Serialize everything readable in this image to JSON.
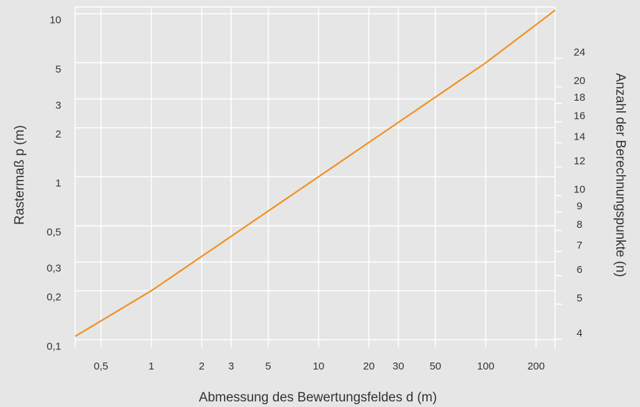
{
  "chart_data": {
    "type": "line",
    "xlabel": "Abmessung des Bewertungsfeldes d (m)",
    "ylabel": "Rastermaß p (m)",
    "y2label": "Anzahl der Berechnungspunkte (n)",
    "x_scale": "log",
    "y_scale": "log",
    "xlim": [
      0.35,
      260
    ],
    "ylim": [
      0.09,
      11
    ],
    "y2lim": [
      3.65,
      32
    ],
    "grid": true,
    "x_ticks": [
      {
        "value": 0.5,
        "label": "0,5"
      },
      {
        "value": 1,
        "label": "1"
      },
      {
        "value": 2,
        "label": "2"
      },
      {
        "value": 3,
        "label": "3"
      },
      {
        "value": 5,
        "label": "5"
      },
      {
        "value": 10,
        "label": "10"
      },
      {
        "value": 20,
        "label": "20"
      },
      {
        "value": 30,
        "label": "30"
      },
      {
        "value": 50,
        "label": "50"
      },
      {
        "value": 100,
        "label": "100"
      },
      {
        "value": 200,
        "label": "200"
      }
    ],
    "y_ticks": [
      {
        "value": 0.1,
        "label": "0,1"
      },
      {
        "value": 0.2,
        "label": "0,2"
      },
      {
        "value": 0.3,
        "label": "0,3"
      },
      {
        "value": 0.5,
        "label": "0,5"
      },
      {
        "value": 1,
        "label": "1"
      },
      {
        "value": 2,
        "label": "2"
      },
      {
        "value": 3,
        "label": "3"
      },
      {
        "value": 5,
        "label": "5"
      },
      {
        "value": 10,
        "label": "10"
      }
    ],
    "y2_ticks": [
      {
        "value": 4,
        "label": "4"
      },
      {
        "value": 5,
        "label": "5"
      },
      {
        "value": 6,
        "label": "6"
      },
      {
        "value": 7,
        "label": "7"
      },
      {
        "value": 8,
        "label": "8"
      },
      {
        "value": 9,
        "label": "9"
      },
      {
        "value": 10,
        "label": "10"
      },
      {
        "value": 12,
        "label": "12"
      },
      {
        "value": 14,
        "label": "14"
      },
      {
        "value": 16,
        "label": "16"
      },
      {
        "value": 18,
        "label": "18"
      },
      {
        "value": 20,
        "label": "20"
      },
      {
        "value": 24,
        "label": "24"
      }
    ],
    "series": [
      {
        "color": "#f0901e",
        "x": [
          0.35,
          1,
          10,
          100,
          260
        ],
        "y": [
          0.105,
          0.2,
          1,
          5,
          10.5
        ]
      }
    ]
  }
}
